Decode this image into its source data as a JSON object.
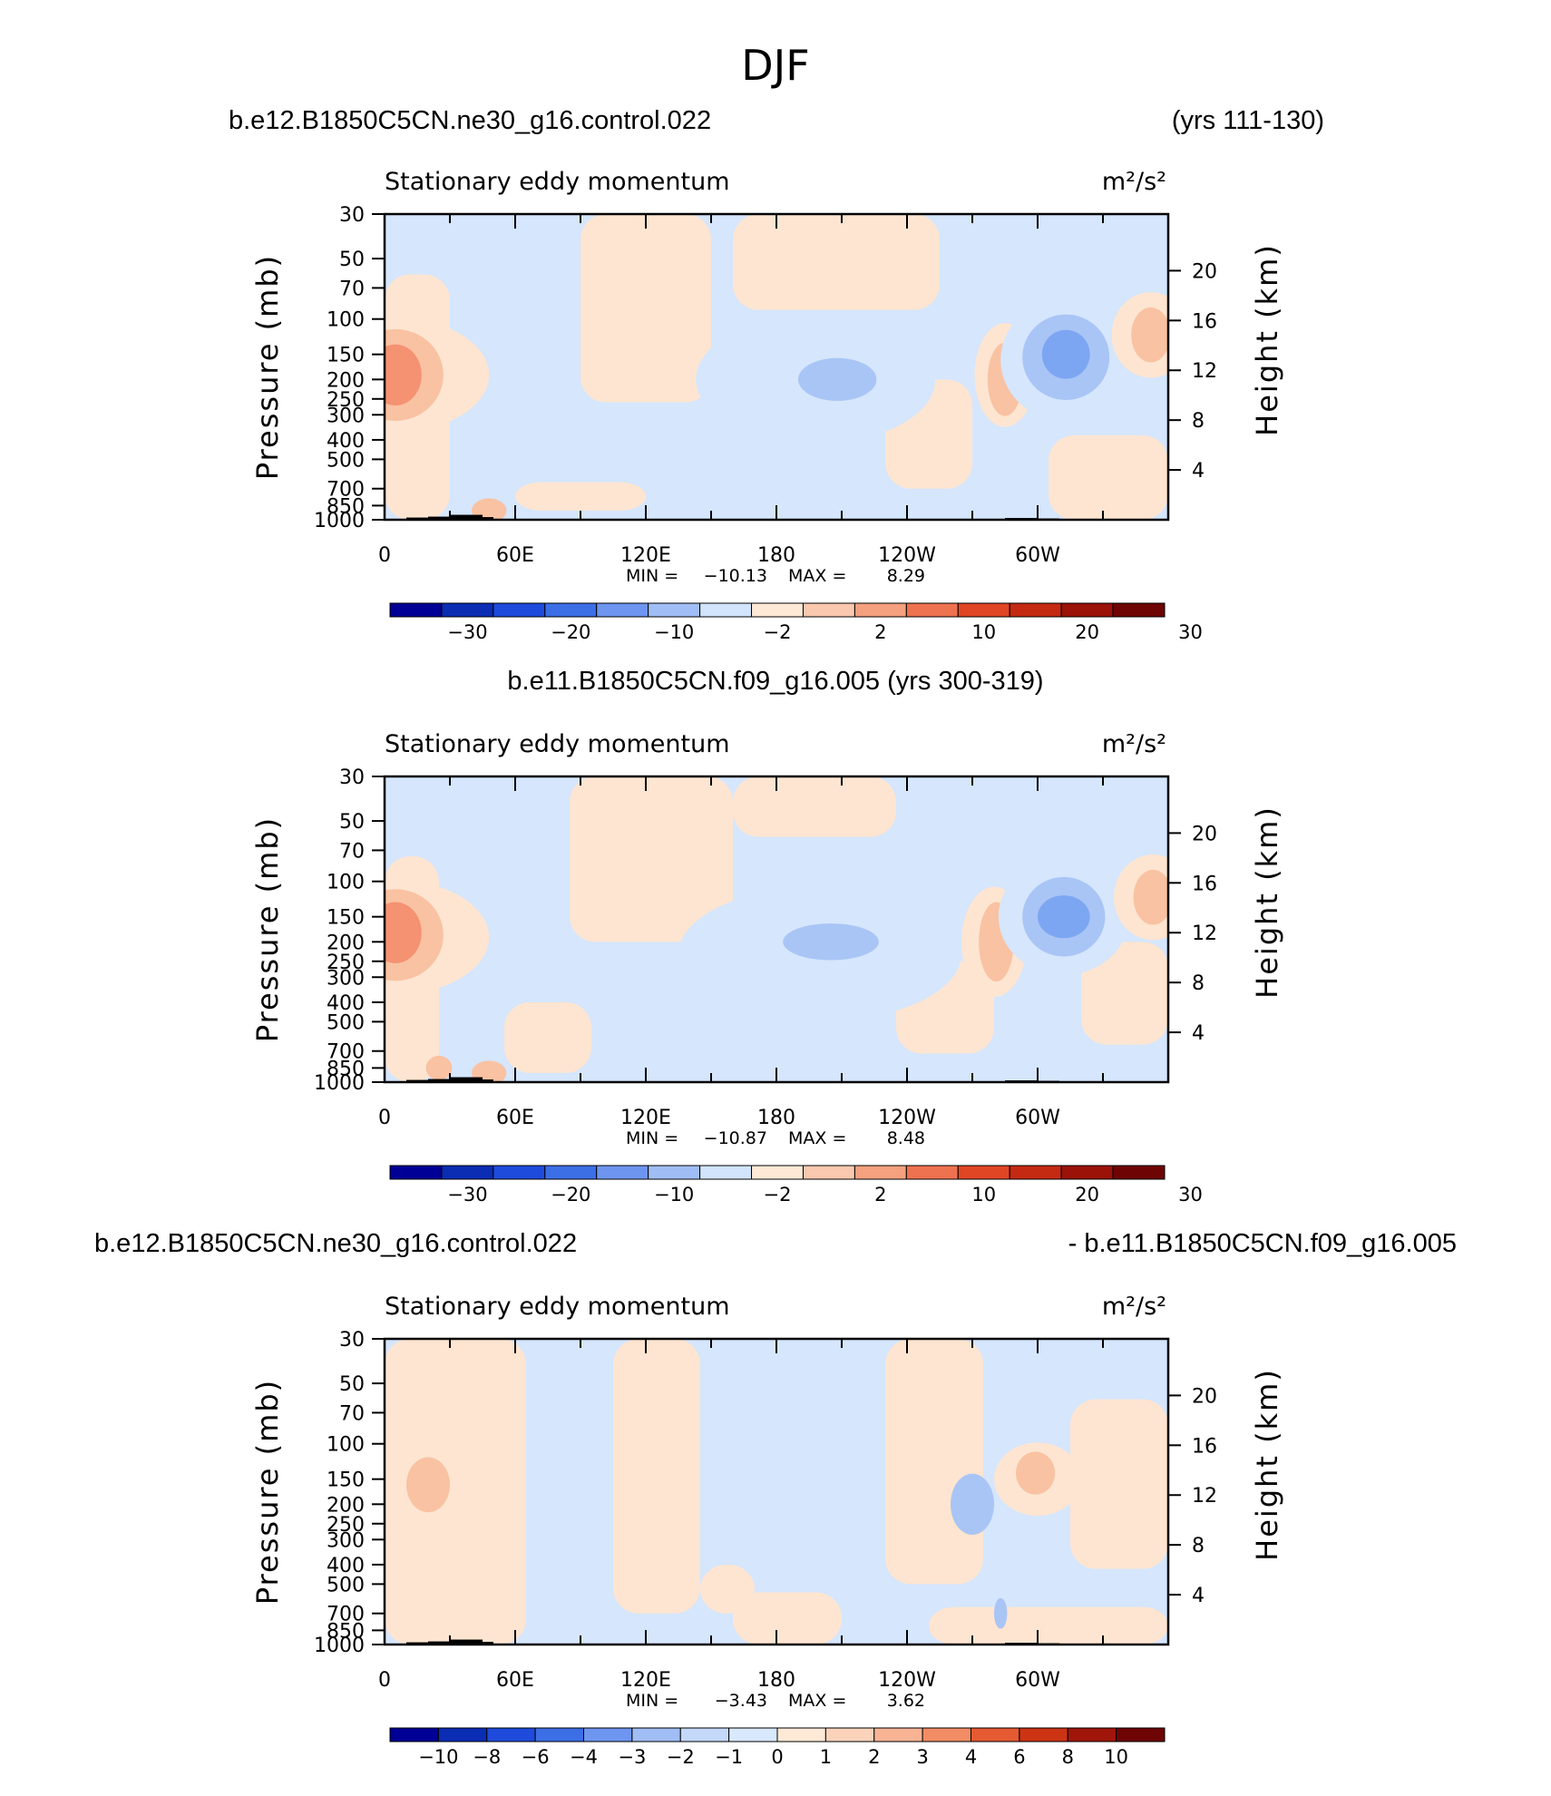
{
  "page_title": "DJF",
  "colors": {
    "deep_blue": "#7da6f2",
    "mid_blue": "#a9c5f6",
    "light_blue": "#d5e6fd",
    "light_orange": "#fde5d1",
    "mid_orange": "#f9c2a2",
    "deep_orange": "#f49272",
    "terrain": "#000000"
  },
  "chart_data": [
    {
      "type": "heatmap",
      "header_left": "b.e12.B1850C5CN.ne30_g16.control.022",
      "header_right": "(yrs 111-130)",
      "header_center": "",
      "subtitle_left": "Stationary eddy momentum",
      "subtitle_right": "m²/s²",
      "ylabel": "Pressure (mb)",
      "ylabel_right": "Height (km)",
      "yticks": [
        "30",
        "50",
        "70",
        "100",
        "150",
        "200",
        "250",
        "300",
        "400",
        "500",
        "700",
        "850",
        "1000"
      ],
      "yticks_right": [
        "20",
        "16",
        "12",
        "8",
        "4"
      ],
      "xticks": [
        "0",
        "60E",
        "120E",
        "180",
        "120W",
        "60W"
      ],
      "min_label": "MIN =",
      "min_value": "−10.13",
      "max_label": "MAX =",
      "max_value": "8.29",
      "colorbar_labels": [
        "−30",
        "−20",
        "−10",
        "−2",
        "2",
        "10",
        "20",
        "30"
      ],
      "colorbar_colors": [
        "#000096",
        "#0a2db4",
        "#1e4bdc",
        "#3c6ee6",
        "#6e96f0",
        "#a0beF5",
        "#d2e4fc",
        "#fde9d6",
        "#fac8ae",
        "#f5a07e",
        "#ee7250",
        "#e04624",
        "#c42a12",
        "#9a1208",
        "#6e0404"
      ],
      "field_min": -10.13,
      "field_max": 8.29
    },
    {
      "type": "heatmap",
      "header_left": "",
      "header_right": "",
      "header_center": "b.e11.B1850C5CN.f09_g16.005 (yrs 300-319)",
      "subtitle_left": "Stationary eddy momentum",
      "subtitle_right": "m²/s²",
      "ylabel": "Pressure (mb)",
      "ylabel_right": "Height (km)",
      "yticks": [
        "30",
        "50",
        "70",
        "100",
        "150",
        "200",
        "250",
        "300",
        "400",
        "500",
        "700",
        "850",
        "1000"
      ],
      "yticks_right": [
        "20",
        "16",
        "12",
        "8",
        "4"
      ],
      "xticks": [
        "0",
        "60E",
        "120E",
        "180",
        "120W",
        "60W"
      ],
      "min_label": "MIN =",
      "min_value": "−10.87",
      "max_label": "MAX =",
      "max_value": "8.48",
      "colorbar_labels": [
        "−30",
        "−20",
        "−10",
        "−2",
        "2",
        "10",
        "20",
        "30"
      ],
      "colorbar_colors": [
        "#000096",
        "#0a2db4",
        "#1e4bdc",
        "#3c6ee6",
        "#6e96f0",
        "#a0beF5",
        "#d2e4fc",
        "#fde9d6",
        "#fac8ae",
        "#f5a07e",
        "#ee7250",
        "#e04624",
        "#c42a12",
        "#9a1208",
        "#6e0404"
      ],
      "field_min": -10.87,
      "field_max": 8.48
    },
    {
      "type": "heatmap",
      "header_left": "b.e12.B1850C5CN.ne30_g16.control.022",
      "header_right": "- b.e11.B1850C5CN.f09_g16.005",
      "header_center": "",
      "subtitle_left": "Stationary eddy momentum",
      "subtitle_right": "m²/s²",
      "ylabel": "Pressure (mb)",
      "ylabel_right": "Height (km)",
      "yticks": [
        "30",
        "50",
        "70",
        "100",
        "150",
        "200",
        "250",
        "300",
        "400",
        "500",
        "700",
        "850",
        "1000"
      ],
      "yticks_right": [
        "20",
        "16",
        "12",
        "8",
        "4"
      ],
      "xticks": [
        "0",
        "60E",
        "120E",
        "180",
        "120W",
        "60W"
      ],
      "min_label": "MIN =",
      "min_value": "−3.43",
      "max_label": "MAX =",
      "max_value": "3.62",
      "colorbar_labels": [
        "−10",
        "−8",
        "−6",
        "−4",
        "−3",
        "−2",
        "−1",
        "0",
        "1",
        "2",
        "3",
        "4",
        "6",
        "8",
        "10"
      ],
      "colorbar_colors": [
        "#000096",
        "#0a2db4",
        "#1e4bdc",
        "#3c6ee6",
        "#6e96f0",
        "#a0beF5",
        "#c4d8fa",
        "#d8e8fd",
        "#fde9d6",
        "#fbd3ba",
        "#f8b494",
        "#f28c64",
        "#e65a32",
        "#cc3414",
        "#a0160a",
        "#6e0404"
      ],
      "field_min": -3.43,
      "field_max": 3.62
    }
  ]
}
